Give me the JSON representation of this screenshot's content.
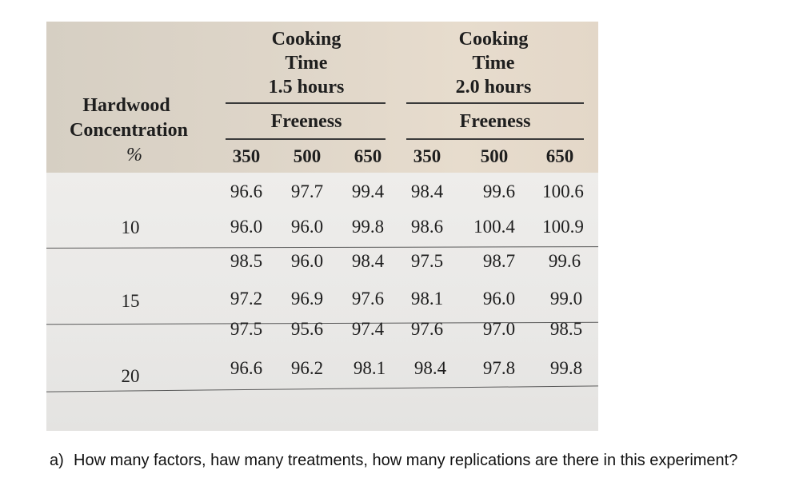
{
  "table": {
    "row_header": {
      "line1": "Hardwood",
      "line2": "Concentration",
      "unit": "%"
    },
    "group_headers": [
      {
        "line1": "Cooking",
        "line2": "Time",
        "line3": "1.5 hours",
        "sub": "Freeness"
      },
      {
        "line1": "Cooking",
        "line2": "Time",
        "line3": "2.0 hours",
        "sub": "Freeness"
      }
    ],
    "freeness_levels": [
      "350",
      "500",
      "650",
      "350",
      "500",
      "650"
    ],
    "concentrations": [
      "10",
      "15",
      "20"
    ],
    "rows": [
      [
        "96.6",
        "97.7",
        "99.4",
        "98.4",
        "99.6",
        "100.6"
      ],
      [
        "96.0",
        "96.0",
        "99.8",
        "98.6",
        "100.4",
        "100.9"
      ],
      [
        "98.5",
        "96.0",
        "98.4",
        "97.5",
        "98.7",
        "99.6"
      ],
      [
        "97.2",
        "96.9",
        "97.6",
        "98.1",
        "96.0",
        "99.0"
      ],
      [
        "97.5",
        "95.6",
        "97.4",
        "97.6",
        "97.0",
        "98.5"
      ],
      [
        "96.6",
        "96.2",
        "98.1",
        "98.4",
        "97.8",
        "99.8"
      ]
    ]
  },
  "question": {
    "prefix": "a)",
    "text": "How many factors, haw many treatments, how many replications are there in this experiment?"
  }
}
